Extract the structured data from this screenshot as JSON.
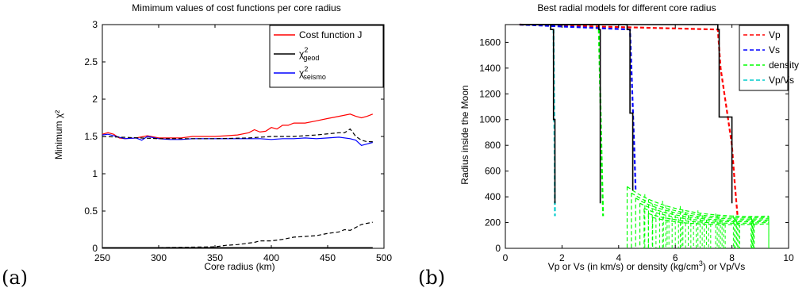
{
  "panel_tags": [
    "(a)",
    "(b)"
  ],
  "chart_data": [
    {
      "type": "line",
      "title": "Mimimum values of cost functions per core radius",
      "xlabel": "Core radius (km)",
      "ylabel": "Minimum χ²",
      "xlim": [
        250,
        500
      ],
      "ylim": [
        0,
        3
      ],
      "xticks": [
        250,
        300,
        350,
        400,
        450,
        500
      ],
      "yticks": [
        0,
        0.5,
        1,
        1.5,
        2,
        2.5,
        3
      ],
      "grid": false,
      "legend_position": "top-right",
      "colors": {
        "cost": "#ff0000",
        "geod": "#000000",
        "seismo": "#0000ff"
      },
      "legend": [
        {
          "label": "Cost function J",
          "color": "#ff0000"
        },
        {
          "label": "χ",
          "sup": "2",
          "sub": "geod",
          "color": "#000000"
        },
        {
          "label": "χ",
          "sup": "2",
          "sub": "seismo",
          "color": "#0000ff"
        }
      ],
      "series": [
        {
          "name": "Cost function J",
          "color": "#ff0000",
          "style": "solid",
          "x": [
            250,
            255,
            260,
            265,
            270,
            280,
            290,
            300,
            310,
            320,
            330,
            340,
            350,
            360,
            370,
            380,
            385,
            390,
            395,
            400,
            405,
            410,
            415,
            420,
            430,
            440,
            450,
            460,
            470,
            475,
            480,
            485,
            490
          ],
          "y": [
            1.53,
            1.55,
            1.53,
            1.48,
            1.47,
            1.48,
            1.51,
            1.48,
            1.48,
            1.48,
            1.5,
            1.5,
            1.5,
            1.51,
            1.52,
            1.55,
            1.59,
            1.56,
            1.57,
            1.62,
            1.6,
            1.65,
            1.65,
            1.68,
            1.68,
            1.71,
            1.74,
            1.77,
            1.8,
            1.77,
            1.75,
            1.77,
            1.8
          ]
        },
        {
          "name": "χ2 geod",
          "color": "#000000",
          "style": "solid",
          "x": [
            250,
            300,
            350,
            400,
            450,
            490
          ],
          "y": [
            0.01,
            0.01,
            0.01,
            0.01,
            0.01,
            0.01
          ]
        },
        {
          "name": "χ2 seismo",
          "color": "#0000ff",
          "style": "solid",
          "x": [
            250,
            255,
            260,
            270,
            280,
            285,
            290,
            300,
            310,
            320,
            330,
            340,
            350,
            360,
            370,
            380,
            390,
            400,
            410,
            420,
            430,
            440,
            450,
            460,
            470,
            475,
            480,
            485,
            490
          ],
          "y": [
            1.52,
            1.53,
            1.51,
            1.47,
            1.48,
            1.45,
            1.5,
            1.47,
            1.46,
            1.46,
            1.47,
            1.47,
            1.47,
            1.47,
            1.47,
            1.47,
            1.47,
            1.46,
            1.47,
            1.47,
            1.48,
            1.47,
            1.48,
            1.49,
            1.47,
            1.45,
            1.38,
            1.4,
            1.42
          ]
        },
        {
          "name": "",
          "color": "#000000",
          "style": "dashed",
          "x": [
            250,
            300,
            350,
            360,
            370,
            380,
            385,
            390,
            400,
            410,
            420,
            430,
            440,
            450,
            460,
            465,
            470,
            480,
            490
          ],
          "y": [
            0.01,
            0.01,
            0.02,
            0.04,
            0.05,
            0.07,
            0.08,
            0.1,
            0.1,
            0.12,
            0.15,
            0.16,
            0.17,
            0.2,
            0.22,
            0.25,
            0.24,
            0.32,
            0.35
          ]
        },
        {
          "name": "",
          "color": "#000000",
          "style": "dashed",
          "x": [
            250,
            300,
            350,
            380,
            400,
            420,
            440,
            460,
            465,
            470,
            475,
            480,
            485,
            490
          ],
          "y": [
            1.5,
            1.47,
            1.47,
            1.48,
            1.5,
            1.5,
            1.52,
            1.55,
            1.55,
            1.6,
            1.5,
            1.45,
            1.43,
            1.43
          ]
        }
      ]
    },
    {
      "type": "line",
      "title": "Best radial models for different core radius",
      "xlabel": "Vp or Vs (in km/s) or density (kg/cm",
      "xlabel_sup": "3",
      "xlabel_tail": ") or Vp/Vs",
      "ylabel": "Radius inside the Moon",
      "xlim": [
        0,
        10
      ],
      "ylim": [
        0,
        1738
      ],
      "xticks": [
        0,
        2,
        4,
        6,
        8,
        10
      ],
      "yticks": [
        0,
        200,
        400,
        600,
        800,
        1000,
        1200,
        1400,
        1600
      ],
      "grid": false,
      "legend_position": "top-right",
      "colors": {
        "Vp": "#ff0000",
        "Vs": "#0000ff",
        "density": "#00ff00",
        "VpVs": "#00cccc"
      },
      "legend": [
        {
          "label": "Vp",
          "color": "#ff0000"
        },
        {
          "label": "Vs",
          "color": "#0000ff"
        },
        {
          "label": "density",
          "color": "#00ff00"
        },
        {
          "label": "Vp/Vs",
          "color": "#00cccc"
        }
      ],
      "series": [
        {
          "name": "Vp",
          "color": "#ff0000",
          "style": "dashed",
          "x": [
            0.5,
            7.5,
            7.6,
            7.8,
            8.0,
            8.1,
            8.2
          ],
          "y": [
            1738,
            1700,
            1400,
            1100,
            800,
            500,
            250
          ]
        },
        {
          "name": "Vs",
          "color": "#0000ff",
          "style": "dashed",
          "x": [
            0.5,
            4.4,
            4.45,
            4.5,
            4.55,
            4.6
          ],
          "y": [
            1738,
            1700,
            1400,
            1100,
            800,
            450
          ]
        },
        {
          "name": "density",
          "color": "#00ff00",
          "style": "dashed",
          "x": [
            3.3,
            3.35,
            3.4,
            3.45
          ],
          "y": [
            1700,
            1200,
            700,
            250
          ]
        },
        {
          "name": "Vp/Vs",
          "color": "#00cccc",
          "style": "dashed",
          "x": [
            1.7,
            1.72,
            1.74,
            1.75
          ],
          "y": [
            1700,
            1200,
            700,
            250
          ]
        },
        {
          "name": "",
          "color": "#000000",
          "style": "solid",
          "x": [
            0.5,
            1.6,
            1.6,
            1.7,
            1.7,
            1.75,
            1.75
          ],
          "y": [
            1738,
            1738,
            1700,
            1700,
            1000,
            1000,
            350
          ]
        },
        {
          "name": "",
          "color": "#000000",
          "style": "solid",
          "x": [
            0.5,
            3.3,
            3.3,
            3.35,
            3.35
          ],
          "y": [
            1738,
            1738,
            1700,
            1700,
            350
          ]
        },
        {
          "name": "",
          "color": "#000000",
          "style": "solid",
          "x": [
            0.5,
            4.3,
            4.3,
            4.4,
            4.4,
            4.5,
            4.5
          ],
          "y": [
            1738,
            1738,
            1700,
            1700,
            1050,
            1050,
            450
          ]
        },
        {
          "name": "",
          "color": "#000000",
          "style": "solid",
          "x": [
            0.5,
            7.5,
            7.5,
            7.55,
            7.55,
            8.0,
            8.0
          ],
          "y": [
            1738,
            1738,
            1700,
            1700,
            1020,
            1020,
            350
          ]
        }
      ],
      "density_curves": {
        "color": "#00ff00",
        "x_start": [
          4.3,
          4.45,
          4.6,
          4.75,
          4.9,
          5.05,
          5.2
        ],
        "y_start": [
          480,
          430,
          390,
          350,
          310,
          270,
          240
        ],
        "x_end": 9.3,
        "y_end": [
          250,
          240,
          230,
          220,
          210,
          200,
          190
        ]
      }
    }
  ]
}
